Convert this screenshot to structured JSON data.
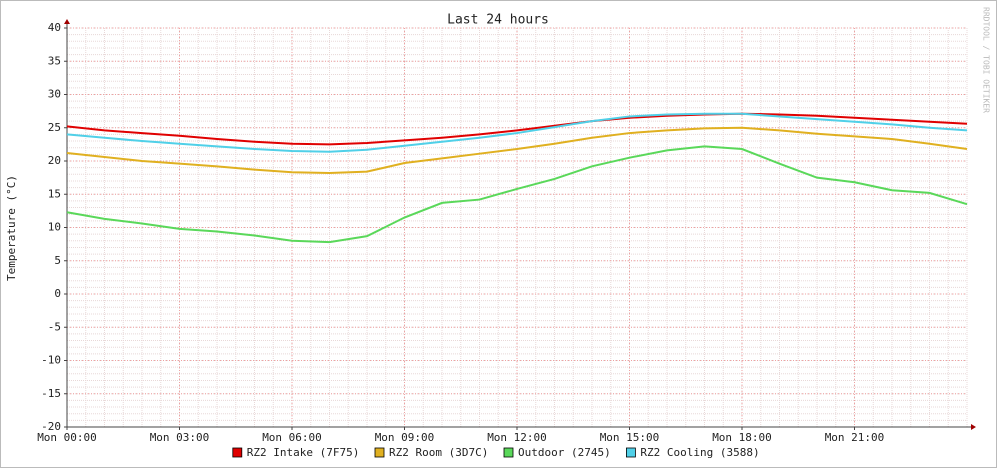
{
  "chart_data": {
    "type": "line",
    "title": "Last 24 hours",
    "y_label": "Temperature (°C)",
    "watermark": "RRDTOOL / TOBI OETIKER",
    "x": [
      0,
      1,
      2,
      3,
      4,
      5,
      6,
      7,
      8,
      9,
      10,
      11,
      12,
      13,
      14,
      15,
      16,
      17,
      18,
      19,
      20,
      21,
      22,
      23,
      24
    ],
    "xlim": [
      0,
      24
    ],
    "xticks": [
      {
        "value": 0,
        "label": "Mon 00:00"
      },
      {
        "value": 3,
        "label": "Mon 03:00"
      },
      {
        "value": 6,
        "label": "Mon 06:00"
      },
      {
        "value": 9,
        "label": "Mon 09:00"
      },
      {
        "value": 12,
        "label": "Mon 12:00"
      },
      {
        "value": 15,
        "label": "Mon 15:00"
      },
      {
        "value": 18,
        "label": "Mon 18:00"
      },
      {
        "value": 21,
        "label": "Mon 21:00"
      }
    ],
    "ylim": [
      -20,
      40
    ],
    "yticks": [
      -20,
      -15,
      -10,
      -5,
      0,
      5,
      10,
      15,
      20,
      25,
      30,
      35,
      40
    ],
    "grid": true,
    "series": [
      {
        "name": "RZ2 Intake (7F75)",
        "color": "#e00000",
        "values": [
          25.2,
          24.6,
          24.2,
          23.8,
          23.3,
          22.9,
          22.6,
          22.5,
          22.7,
          23.1,
          23.5,
          24.0,
          24.6,
          25.3,
          26.0,
          26.5,
          26.8,
          27.0,
          27.1,
          27.0,
          26.8,
          26.5,
          26.2,
          25.9,
          25.6
        ]
      },
      {
        "name": "RZ2 Room (3D7C)",
        "color": "#e0b020",
        "values": [
          21.2,
          20.6,
          20.0,
          19.6,
          19.2,
          18.7,
          18.3,
          18.2,
          18.4,
          19.7,
          20.4,
          21.1,
          21.8,
          22.6,
          23.5,
          24.2,
          24.6,
          24.9,
          25.0,
          24.6,
          24.1,
          23.7,
          23.3,
          22.6,
          21.8
        ]
      },
      {
        "name": "Outdoor (2745)",
        "color": "#5ad85a",
        "values": [
          12.3,
          11.3,
          10.6,
          9.8,
          9.4,
          8.8,
          8.0,
          7.8,
          8.7,
          11.5,
          13.7,
          14.2,
          15.8,
          17.3,
          19.2,
          20.5,
          21.6,
          22.2,
          21.8,
          19.6,
          17.5,
          16.8,
          15.6,
          15.2,
          13.5
        ]
      },
      {
        "name": "RZ2 Cooling (3588)",
        "color": "#50d0e8",
        "values": [
          24.0,
          23.5,
          23.0,
          22.6,
          22.2,
          21.8,
          21.5,
          21.4,
          21.7,
          22.3,
          22.9,
          23.5,
          24.2,
          25.1,
          26.0,
          26.7,
          27.0,
          27.1,
          27.1,
          26.7,
          26.3,
          25.9,
          25.5,
          25.0,
          24.6
        ]
      }
    ]
  }
}
